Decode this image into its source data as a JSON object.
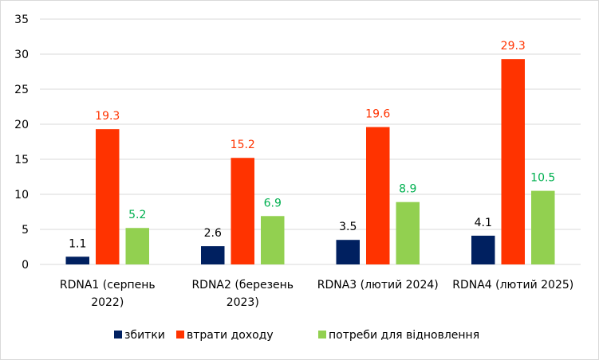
{
  "chart_data": {
    "type": "bar",
    "title": "",
    "xlabel": "",
    "ylabel": "",
    "ylim": [
      0,
      35
    ],
    "yticks": [
      "0",
      "5",
      "10",
      "15",
      "20",
      "25",
      "30",
      "35"
    ],
    "grid": true,
    "legend_position": "bottom",
    "categories": [
      [
        "RDNA1 (серпень",
        "2022)"
      ],
      [
        "RDNA2 (березень",
        "2023)"
      ],
      [
        "RDNA3 (лютий 2024)"
      ],
      [
        "RDNA4 (лютий 2025)"
      ]
    ],
    "series": [
      {
        "name": "збитки",
        "color": "#002060",
        "label_color": "#000000",
        "values": [
          1.1,
          2.6,
          3.5,
          4.1
        ],
        "labels": [
          "1.1",
          "2.6",
          "3.5",
          "4.1"
        ]
      },
      {
        "name": "втрати доходу",
        "color": "#FF3300",
        "label_color": "#FF3300",
        "values": [
          19.3,
          15.2,
          19.6,
          29.3
        ],
        "labels": [
          "19.3",
          "15.2",
          "19.6",
          "29.3"
        ]
      },
      {
        "name": "потреби для відновлення",
        "color": "#92D050",
        "label_color": "#00B050",
        "values": [
          5.2,
          6.9,
          8.9,
          10.5
        ],
        "labels": [
          "5.2",
          "6.9",
          "8.9",
          "10.5"
        ]
      }
    ]
  }
}
